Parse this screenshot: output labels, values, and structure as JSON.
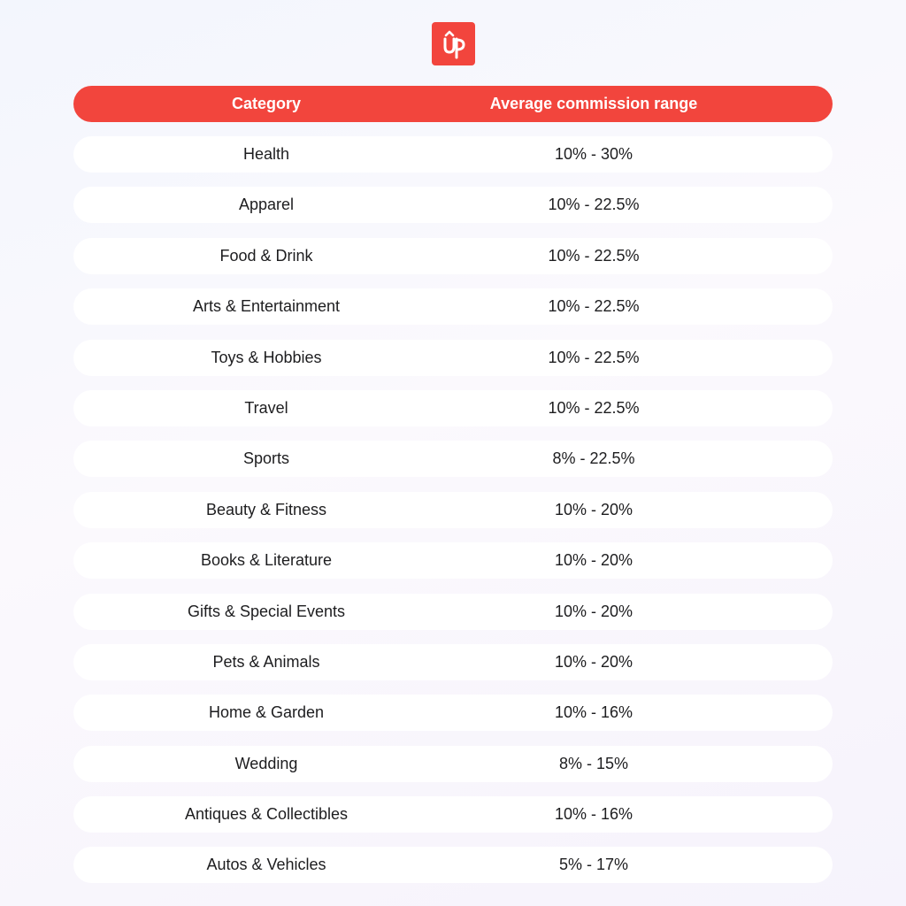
{
  "chart_data": {
    "type": "table",
    "columns": [
      "Category",
      "Average commission range"
    ],
    "rows": [
      {
        "category": "Health",
        "range": "10% - 30%"
      },
      {
        "category": "Apparel",
        "range": "10% - 22.5%"
      },
      {
        "category": "Food & Drink",
        "range": "10% - 22.5%"
      },
      {
        "category": "Arts & Entertainment",
        "range": "10% - 22.5%"
      },
      {
        "category": "Toys & Hobbies",
        "range": "10% - 22.5%"
      },
      {
        "category": "Travel",
        "range": "10% - 22.5%"
      },
      {
        "category": "Sports",
        "range": "8% - 22.5%"
      },
      {
        "category": "Beauty & Fitness",
        "range": "10% - 20%"
      },
      {
        "category": "Books & Literature",
        "range": "10% - 20%"
      },
      {
        "category": "Gifts & Special Events",
        "range": "10% - 20%"
      },
      {
        "category": "Pets & Animals",
        "range": "10% - 20%"
      },
      {
        "category": "Home & Garden",
        "range": "10% - 16%"
      },
      {
        "category": "Wedding",
        "range": "8% - 15%"
      },
      {
        "category": "Antiques & Collectibles",
        "range": "10% - 16%"
      },
      {
        "category": "Autos & Vehicles",
        "range": "5% - 17%"
      }
    ]
  },
  "logo": {
    "icon": "up-logo-icon",
    "color": "#f2453d"
  },
  "colors": {
    "accent": "#f2453d",
    "row_background": "#ffffff",
    "text": "#1d1d1f"
  }
}
